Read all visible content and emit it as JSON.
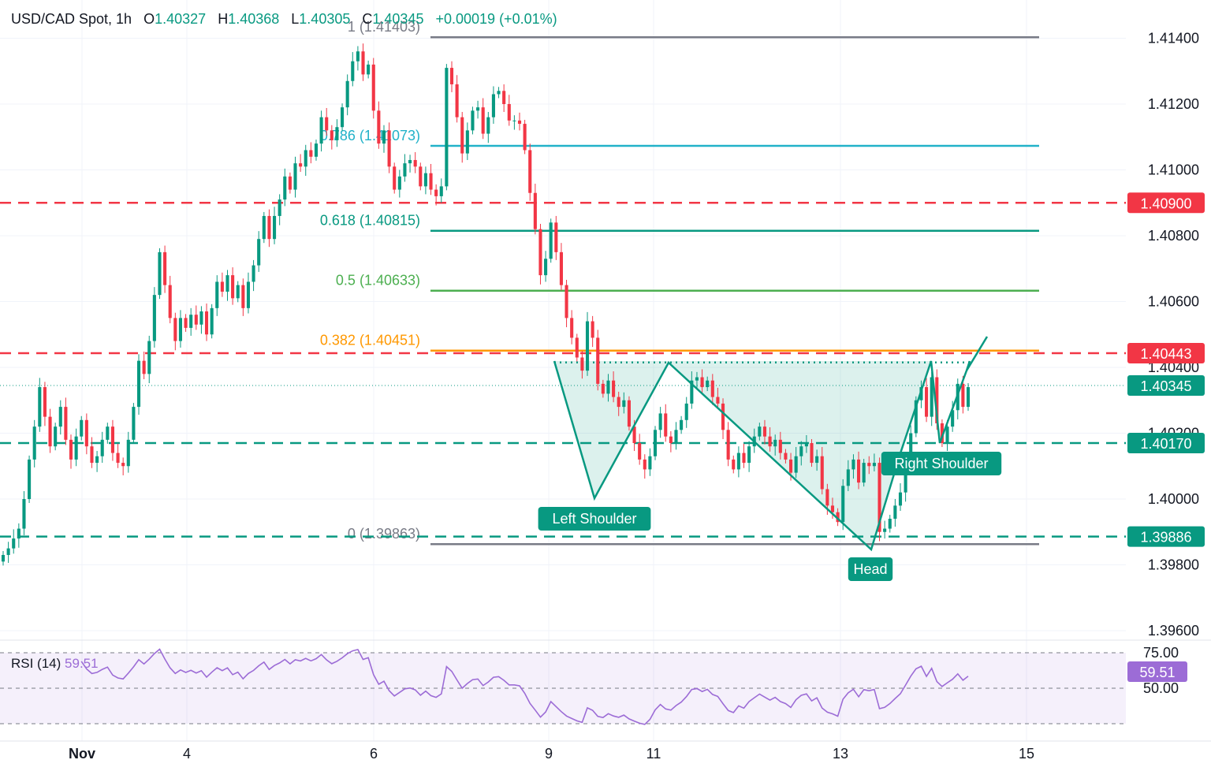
{
  "header": {
    "symbol": "USD/CAD Spot, 1h",
    "open_label": "O",
    "open": "1.40327",
    "high_label": "H",
    "high": "1.40368",
    "low_label": "L",
    "low": "1.40305",
    "close_label": "C",
    "close": "1.40345",
    "change": "+0.00019 (+0.01%)"
  },
  "rsi": {
    "label": "RSI (14)",
    "value": "59.51"
  },
  "colors": {
    "up": "#089981",
    "down": "#f23645",
    "fib_0786": "#22b2c9",
    "fib_0618": "#089981",
    "fib_05": "#4caf50",
    "fib_0382": "#ff9800",
    "rsi": "#9c6cd6",
    "axis_text": "#131722"
  },
  "chart_data": {
    "type": "candlestick",
    "price_axis": {
      "ticks": [
        "1.41400",
        "1.41200",
        "1.41000",
        "1.40800",
        "1.40600",
        "1.40400",
        "1.40200",
        "1.40000",
        "1.39800",
        "1.39600"
      ],
      "range": [
        1.3955,
        1.4146
      ]
    },
    "time_axis": {
      "ticks": [
        "Nov",
        "4",
        "6",
        "9",
        "11",
        "13",
        "15"
      ]
    },
    "price_tags": [
      {
        "label": "1.40900",
        "value": 1.409,
        "color": "#f23645"
      },
      {
        "label": "1.40443",
        "value": 1.40443,
        "color": "#f23645"
      },
      {
        "label": "1.40345",
        "value": 1.40345,
        "color": "#089981"
      },
      {
        "label": "1.40170",
        "value": 1.4017,
        "color": "#089981"
      },
      {
        "label": "1.39886",
        "value": 1.39886,
        "color": "#089981"
      }
    ],
    "horizontal_levels": [
      {
        "value": 1.409,
        "style": "dashed",
        "color": "#f23645"
      },
      {
        "value": 1.40443,
        "style": "dashed",
        "color": "#f23645"
      },
      {
        "value": 1.4017,
        "style": "dashed",
        "color": "#089981"
      },
      {
        "value": 1.39886,
        "style": "dashed",
        "color": "#089981"
      }
    ],
    "fibonacci": [
      {
        "label": "1 (1.41403)",
        "value": 1.41403,
        "color": "#787b86"
      },
      {
        "label": "0.786 (1.41073)",
        "value": 1.41073,
        "color": "#22b2c9"
      },
      {
        "label": "0.618 (1.40815)",
        "value": 1.40815,
        "color": "#089981"
      },
      {
        "label": "0.5 (1.40633)",
        "value": 1.40633,
        "color": "#4caf50"
      },
      {
        "label": "0.382 (1.40451)",
        "value": 1.40451,
        "color": "#ff9800"
      },
      {
        "label": "0 (1.39863)",
        "value": 1.39863,
        "color": "#787b86"
      }
    ],
    "pattern": {
      "name": "Inverse Head and Shoulders",
      "labels": [
        {
          "text": "Left Shoulder",
          "value": 1.40005
        },
        {
          "text": "Head",
          "value": 1.39845
        },
        {
          "text": "Right Shoulder",
          "value": 1.4017
        }
      ],
      "neckline": 1.40415
    },
    "closes": [
      1.3983,
      1.3985,
      1.3988,
      1.3991,
      1.4,
      1.4012,
      1.4022,
      1.4034,
      1.4025,
      1.4016,
      1.4022,
      1.4028,
      1.4018,
      1.4012,
      1.4019,
      1.4024,
      1.4016,
      1.4011,
      1.4013,
      1.4018,
      1.4022,
      1.4014,
      1.4011,
      1.401,
      1.4018,
      1.4028,
      1.4042,
      1.4038,
      1.4048,
      1.4062,
      1.4075,
      1.4065,
      1.4055,
      1.4048,
      1.4055,
      1.4052,
      1.4056,
      1.4053,
      1.4057,
      1.405,
      1.4058,
      1.4066,
      1.4063,
      1.4068,
      1.4061,
      1.4065,
      1.4058,
      1.4066,
      1.4071,
      1.4079,
      1.4086,
      1.4079,
      1.4086,
      1.4091,
      1.4098,
      1.4094,
      1.4102,
      1.4101,
      1.4106,
      1.4104,
      1.4108,
      1.4116,
      1.4112,
      1.4109,
      1.4113,
      1.4119,
      1.4127,
      1.4133,
      1.4136,
      1.4129,
      1.4132,
      1.4118,
      1.4108,
      1.4112,
      1.4101,
      1.4094,
      1.4098,
      1.4102,
      1.4103,
      1.4101,
      1.4095,
      1.4099,
      1.4094,
      1.4092,
      1.4095,
      1.4131,
      1.4126,
      1.4116,
      1.4105,
      1.4112,
      1.4118,
      1.4119,
      1.4111,
      1.4116,
      1.4123,
      1.4124,
      1.412,
      1.4115,
      1.4115,
      1.4114,
      1.4106,
      1.4093,
      1.4082,
      1.4068,
      1.4073,
      1.4084,
      1.4075,
      1.4065,
      1.4055,
      1.4049,
      1.4043,
      1.4039,
      1.4054,
      1.4049,
      1.4035,
      1.4032,
      1.4036,
      1.4031,
      1.4028,
      1.403,
      1.4022,
      1.4017,
      1.4012,
      1.4009,
      1.4013,
      1.4021,
      1.4026,
      1.4019,
      1.4017,
      1.4021,
      1.4024,
      1.4029,
      1.4036,
      1.4037,
      1.4034,
      1.4036,
      1.4031,
      1.4029,
      1.4021,
      1.4012,
      1.4009,
      1.4014,
      1.4011,
      1.4016,
      1.4019,
      1.4022,
      1.4019,
      1.4016,
      1.4018,
      1.4014,
      1.4012,
      1.4008,
      1.4013,
      1.4016,
      1.4017,
      1.4011,
      1.4013,
      1.4003,
      1.3998,
      1.3996,
      1.3993,
      1.4004,
      1.4009,
      1.4012,
      1.4005,
      1.4011,
      1.401,
      1.4011,
      1.399,
      1.3991,
      1.3994,
      1.3998,
      1.4002,
      1.401,
      1.402,
      1.403,
      1.4034,
      1.4025,
      1.4037,
      1.4023,
      1.4017,
      1.4022,
      1.4027,
      1.4035,
      1.4028,
      1.4034
    ]
  }
}
